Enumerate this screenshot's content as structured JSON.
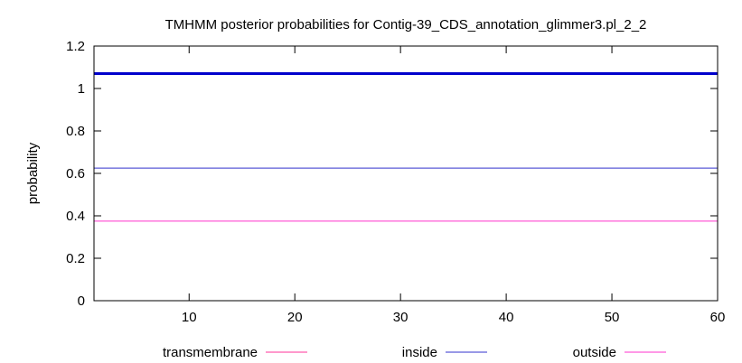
{
  "chart_data": {
    "type": "line",
    "title": "TMHMM posterior probabilities for Contig-39_CDS_annotation_glimmer3.pl_2_2",
    "xlabel": "",
    "ylabel": "probability",
    "xlim": [
      1,
      60
    ],
    "ylim": [
      0,
      1.2
    ],
    "x_ticks": [
      {
        "value": 10,
        "label": "10"
      },
      {
        "value": 20,
        "label": "20"
      },
      {
        "value": 30,
        "label": "30"
      },
      {
        "value": 40,
        "label": "40"
      },
      {
        "value": 50,
        "label": "50"
      },
      {
        "value": 60,
        "label": "60"
      }
    ],
    "y_ticks": [
      {
        "value": 0,
        "label": "0"
      },
      {
        "value": 0.2,
        "label": "0.2"
      },
      {
        "value": 0.4,
        "label": "0.4"
      },
      {
        "value": 0.6,
        "label": "0.6"
      },
      {
        "value": 0.8,
        "label": "0.8"
      },
      {
        "value": 1.0,
        "label": "1"
      },
      {
        "value": 1.2,
        "label": "1.2"
      }
    ],
    "grid": false,
    "legend_position": "bottom",
    "series": [
      {
        "name": "transmembrane",
        "color": "#ff3399",
        "x": [
          1,
          60
        ],
        "y": [
          0,
          0
        ]
      },
      {
        "name": "inside",
        "color": "#3333cc",
        "x": [
          1,
          60
        ],
        "y": [
          0.625,
          0.625
        ]
      },
      {
        "name": "outside",
        "color": "#ff33cc",
        "x": [
          1,
          60
        ],
        "y": [
          0.375,
          0.375
        ]
      }
    ],
    "annotations": [
      {
        "type": "horizontal-line",
        "y": 1.07,
        "color": "#0000cc"
      }
    ]
  }
}
